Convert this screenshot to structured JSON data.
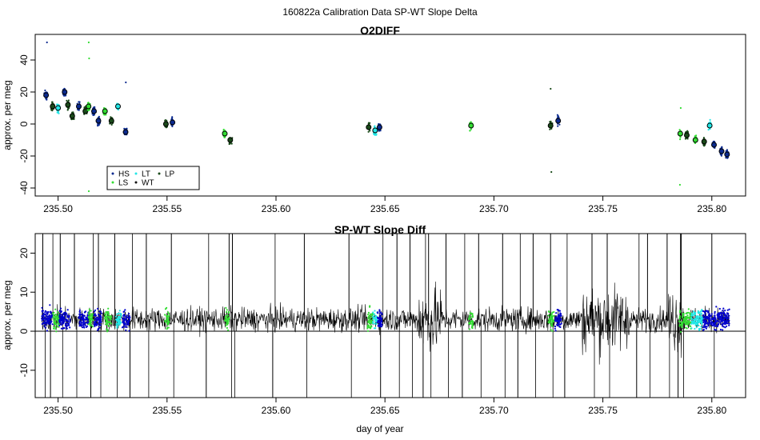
{
  "figure_title": "160822a   Calibration Data SP-WT Slope Delta",
  "colors": {
    "HS": "#0b2a8f",
    "LS": "#33dd33",
    "LT": "#22e6e6",
    "WT": "#111111",
    "LP": "#1a4a1a",
    "blue": "#0000cc",
    "line": "#000000"
  },
  "chart_data": [
    {
      "type": "scatter",
      "title": "O2DIFF",
      "xlabel": "",
      "ylabel": "approx. per meg",
      "xlim": [
        235.4895,
        235.8155
      ],
      "ylim": [
        -45,
        56
      ],
      "xticks": [
        235.5,
        235.55,
        235.6,
        235.65,
        235.7,
        235.75,
        235.8
      ],
      "xtick_labels": [
        "235.50",
        "235.55",
        "235.60",
        "235.65",
        "235.70",
        "235.75",
        "235.80"
      ],
      "yticks": [
        -40,
        -20,
        0,
        20,
        40
      ],
      "ytick_labels": [
        "-40",
        "-20",
        "0",
        "20",
        "40"
      ],
      "grid": false,
      "legend": {
        "position": "bottom-left",
        "entries": [
          {
            "label": "HS",
            "color_key": "HS"
          },
          {
            "label": "LS",
            "color_key": "LS"
          },
          {
            "label": "LT",
            "color_key": "LT"
          },
          {
            "label": "WT",
            "color_key": "WT"
          },
          {
            "label": "LP",
            "color_key": "LP"
          }
        ]
      },
      "clusters": [
        {
          "x": 235.4945,
          "y": 18,
          "series": "HS",
          "outliers": [
            51
          ]
        },
        {
          "x": 235.4975,
          "y": 11,
          "series": "LP"
        },
        {
          "x": 235.5,
          "y": 10,
          "series": "LT"
        },
        {
          "x": 235.503,
          "y": 20,
          "series": "HS"
        },
        {
          "x": 235.5045,
          "y": 12,
          "series": "LP"
        },
        {
          "x": 235.5065,
          "y": 5,
          "series": "LP"
        },
        {
          "x": 235.5095,
          "y": 11,
          "series": "HS"
        },
        {
          "x": 235.5125,
          "y": 8,
          "series": "LP"
        },
        {
          "x": 235.514,
          "y": 11,
          "series": "LS",
          "outliers": [
            51,
            41,
            -42
          ]
        },
        {
          "x": 235.5165,
          "y": 8,
          "series": "HS"
        },
        {
          "x": 235.5185,
          "y": 2,
          "series": "HS"
        },
        {
          "x": 235.5215,
          "y": 8,
          "series": "LS"
        },
        {
          "x": 235.5245,
          "y": 2,
          "series": "LP"
        },
        {
          "x": 235.5275,
          "y": 11,
          "series": "LT"
        },
        {
          "x": 235.531,
          "y": -5,
          "series": "HS",
          "outliers": [
            26
          ]
        },
        {
          "x": 235.5495,
          "y": 0,
          "series": "LP"
        },
        {
          "x": 235.5525,
          "y": 1,
          "series": "HS"
        },
        {
          "x": 235.5765,
          "y": -6,
          "series": "LS"
        },
        {
          "x": 235.579,
          "y": -10,
          "series": "LP"
        },
        {
          "x": 235.6425,
          "y": -2,
          "series": "LP"
        },
        {
          "x": 235.6455,
          "y": -4,
          "series": "LT"
        },
        {
          "x": 235.6475,
          "y": -2,
          "series": "HS"
        },
        {
          "x": 235.6895,
          "y": -1,
          "series": "LS"
        },
        {
          "x": 235.726,
          "y": -1,
          "series": "LP",
          "outliers": [
            22,
            -30
          ]
        },
        {
          "x": 235.7295,
          "y": 2,
          "series": "HS"
        },
        {
          "x": 235.7855,
          "y": -6,
          "series": "LS",
          "outliers": [
            10,
            -38
          ]
        },
        {
          "x": 235.7885,
          "y": -7,
          "series": "LP"
        },
        {
          "x": 235.7925,
          "y": -10,
          "series": "LS"
        },
        {
          "x": 235.7965,
          "y": -11,
          "series": "LP"
        },
        {
          "x": 235.799,
          "y": -1,
          "series": "LT"
        },
        {
          "x": 235.801,
          "y": -13,
          "series": "HS"
        },
        {
          "x": 235.8045,
          "y": -17,
          "series": "HS"
        },
        {
          "x": 235.807,
          "y": -19,
          "series": "HS"
        }
      ]
    },
    {
      "type": "line",
      "title": "SP-WT Slope Diff",
      "xlabel": "day of year",
      "ylabel": "approx. per meg",
      "xlim": [
        235.4895,
        235.8155
      ],
      "ylim": [
        -17,
        25
      ],
      "xticks": [
        235.5,
        235.55,
        235.6,
        235.65,
        235.7,
        235.75,
        235.8
      ],
      "xtick_labels": [
        "235.50",
        "235.55",
        "235.60",
        "235.65",
        "235.70",
        "235.75",
        "235.80"
      ],
      "yticks": [
        -10,
        0,
        10,
        20
      ],
      "ytick_labels": [
        "-10",
        "0",
        "10",
        "20"
      ],
      "grid": false,
      "reference_line_y": 0,
      "x_range": [
        235.4925,
        235.808
      ],
      "baseline": 3,
      "spike_x": [
        235.493,
        235.4965,
        235.501,
        235.5075,
        235.515,
        235.5185,
        235.526,
        235.533,
        235.5405,
        235.552,
        235.568,
        235.5785,
        235.58,
        235.5985,
        235.613,
        235.6335,
        235.648,
        235.6555,
        235.6615,
        235.6675,
        235.67,
        235.678,
        235.6855,
        235.693,
        235.704,
        235.711,
        235.718,
        235.726,
        235.7325,
        235.745,
        235.752,
        235.7655,
        235.7705,
        235.7795,
        235.7845,
        235.786,
        235.8
      ],
      "highlight_segments": [
        {
          "x": [
            235.4925,
            235.4975
          ],
          "series": "blue"
        },
        {
          "x": [
            235.4975,
            235.5005
          ],
          "series": "LS"
        },
        {
          "x": [
            235.5005,
            235.5055
          ],
          "series": "blue"
        },
        {
          "x": [
            235.5095,
            235.514
          ],
          "series": "blue"
        },
        {
          "x": [
            235.514,
            235.516
          ],
          "series": "LS"
        },
        {
          "x": [
            235.5165,
            235.52
          ],
          "series": "blue"
        },
        {
          "x": [
            235.5215,
            235.5245
          ],
          "series": "LS"
        },
        {
          "x": [
            235.5265,
            235.529
          ],
          "series": "LT"
        },
        {
          "x": [
            235.5295,
            235.533
          ],
          "series": "blue"
        },
        {
          "x": [
            235.549,
            235.551
          ],
          "series": "LS"
        },
        {
          "x": [
            235.5765,
            235.5785
          ],
          "series": "LS"
        },
        {
          "x": [
            235.642,
            235.6445
          ],
          "series": "LS"
        },
        {
          "x": [
            235.6445,
            235.6465
          ],
          "series": "LT"
        },
        {
          "x": [
            235.6465,
            235.649
          ],
          "series": "blue"
        },
        {
          "x": [
            235.6885,
            235.6905
          ],
          "series": "LS"
        },
        {
          "x": [
            235.725,
            235.7275
          ],
          "series": "LS"
        },
        {
          "x": [
            235.728,
            235.731
          ],
          "series": "blue"
        },
        {
          "x": [
            235.785,
            235.7905
          ],
          "series": "LS"
        },
        {
          "x": [
            235.7905,
            235.796
          ],
          "series": "LT"
        },
        {
          "x": [
            235.796,
            235.808
          ],
          "series": "blue"
        }
      ]
    }
  ]
}
